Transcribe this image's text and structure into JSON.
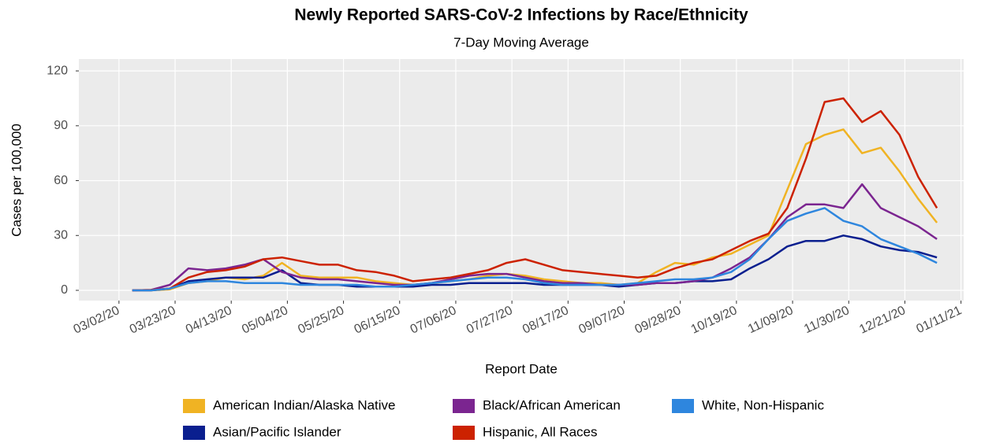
{
  "chart_data": {
    "type": "line",
    "title": "Newly Reported SARS-CoV-2 Infections by Race/Ethnicity",
    "subtitle": "7-Day Moving Average",
    "x_label": "Report Date",
    "y_label": "Cases per 100,000",
    "x": [
      "03/07/20",
      "03/14/20",
      "03/21/20",
      "03/28/20",
      "04/04/20",
      "04/11/20",
      "04/18/20",
      "04/25/20",
      "05/02/20",
      "05/09/20",
      "05/16/20",
      "05/23/20",
      "05/30/20",
      "06/06/20",
      "06/13/20",
      "06/20/20",
      "06/27/20",
      "07/04/20",
      "07/11/20",
      "07/18/20",
      "07/25/20",
      "08/01/20",
      "08/08/20",
      "08/15/20",
      "08/22/20",
      "08/29/20",
      "09/05/20",
      "09/12/20",
      "09/19/20",
      "09/26/20",
      "10/03/20",
      "10/10/20",
      "10/17/20",
      "10/24/20",
      "10/31/20",
      "11/07/20",
      "11/14/20",
      "11/21/20",
      "11/28/20",
      "12/05/20",
      "12/12/20",
      "12/19/20",
      "12/26/20",
      "01/02/21"
    ],
    "series": [
      {
        "name": "American Indian/Alaska Native",
        "color": "#f0b323",
        "values": [
          0,
          0,
          0.5,
          4,
          5,
          7,
          6,
          8,
          15,
          8,
          7,
          7,
          7,
          5,
          4,
          3,
          4,
          5,
          6,
          8,
          9,
          8,
          6,
          5,
          4,
          4,
          3,
          4,
          10,
          15,
          14,
          18,
          20,
          25,
          30,
          55,
          80,
          85,
          88,
          75,
          78,
          65,
          50,
          37
        ]
      },
      {
        "name": "Asian/Pacific Islander",
        "color": "#0a1f8f",
        "values": [
          0,
          0,
          1,
          5,
          6,
          7,
          7,
          7,
          11,
          4,
          3,
          3,
          2,
          2,
          2,
          2,
          3,
          3,
          4,
          4,
          4,
          4,
          3,
          3,
          3,
          3,
          2,
          3,
          4,
          4,
          5,
          5,
          6,
          12,
          17,
          24,
          27,
          27,
          30,
          28,
          24,
          22,
          21,
          18
        ]
      },
      {
        "name": "Black/African American",
        "color": "#7b2590",
        "values": [
          0,
          0.2,
          3,
          12,
          11,
          12,
          14,
          17,
          10,
          7,
          6,
          6,
          5,
          4,
          3,
          3,
          4,
          6,
          8,
          9,
          9,
          7,
          5,
          4,
          4,
          3,
          3,
          3,
          4,
          4,
          5,
          7,
          12,
          18,
          28,
          40,
          47,
          47,
          45,
          58,
          45,
          40,
          35,
          28
        ]
      },
      {
        "name": "Hispanic, All Races",
        "color": "#cc2200",
        "values": [
          0,
          0.2,
          1,
          7,
          10,
          11,
          13,
          17,
          18,
          16,
          14,
          14,
          11,
          10,
          8,
          5,
          6,
          7,
          9,
          11,
          15,
          17,
          14,
          11,
          10,
          9,
          8,
          7,
          8,
          12,
          15,
          17,
          22,
          27,
          31,
          45,
          72,
          103,
          105,
          92,
          98,
          85,
          62,
          45
        ]
      },
      {
        "name": "White, Non-Hispanic",
        "color": "#2e86de",
        "values": [
          0,
          0,
          1,
          4,
          5,
          5,
          4,
          4,
          4,
          3,
          3,
          3,
          3,
          2,
          2,
          3,
          4,
          5,
          6,
          7,
          7,
          6,
          4,
          3,
          3,
          3,
          3,
          4,
          5,
          6,
          6,
          7,
          10,
          17,
          28,
          38,
          42,
          45,
          38,
          35,
          28,
          24,
          20,
          15
        ]
      }
    ],
    "xlim": [
      "02/16/20",
      "01/12/21"
    ],
    "xticks": [
      "03/02/20",
      "03/23/20",
      "04/13/20",
      "05/04/20",
      "05/25/20",
      "06/15/20",
      "07/06/20",
      "07/27/20",
      "08/17/20",
      "09/07/20",
      "09/28/20",
      "10/19/20",
      "11/09/20",
      "11/30/20",
      "12/21/20",
      "01/11/21"
    ],
    "ylim": [
      -5.6,
      126.5
    ],
    "yticks": [
      0,
      30,
      60,
      90,
      120
    ],
    "grid": true
  }
}
